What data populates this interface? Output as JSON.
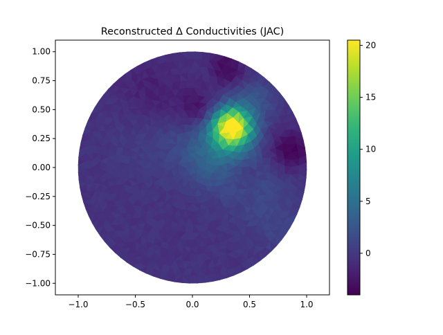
{
  "chart_data": {
    "type": "heatmap",
    "title": "Reconstructed Δ Conductivities (JAC)",
    "xlabel": "",
    "ylabel": "",
    "xlim": [
      -1.2,
      1.2
    ],
    "ylim": [
      -1.1,
      1.1
    ],
    "x_ticks": [
      -1.0,
      -0.5,
      0.0,
      0.5,
      1.0
    ],
    "x_tick_labels": [
      "−1.0",
      "−0.5",
      "0.0",
      "0.5",
      "1.0"
    ],
    "y_ticks": [
      1.0,
      0.75,
      0.5,
      0.25,
      0.0,
      -0.25,
      -0.5,
      -0.75,
      -1.0
    ],
    "y_tick_labels": [
      "1.00",
      "0.75",
      "0.50",
      "0.25",
      "0.00",
      "−0.25",
      "−0.50",
      "−0.75",
      "−1.00"
    ],
    "domain": "unit-disk",
    "colormap": "viridis",
    "colorbar": {
      "range": [
        -4,
        20.5
      ],
      "ticks": [
        0,
        5,
        10,
        15,
        20
      ],
      "tick_labels": [
        "0",
        "5",
        "10",
        "15",
        "20"
      ]
    },
    "background_value": -0.5,
    "features": [
      {
        "x": 0.35,
        "y": 0.35,
        "amplitude": 21.0,
        "spread": 0.12
      },
      {
        "x": 0.2,
        "y": 0.15,
        "amplitude": 5.0,
        "spread": 0.22
      },
      {
        "x": 0.05,
        "y": 0.5,
        "amplitude": -3.0,
        "spread": 0.12
      },
      {
        "x": 0.85,
        "y": 0.15,
        "amplitude": -3.5,
        "spread": 0.12
      },
      {
        "x": 0.3,
        "y": 0.85,
        "amplitude": -3.0,
        "spread": 0.1
      },
      {
        "x": 0.55,
        "y": 0.6,
        "amplitude": 2.5,
        "spread": 0.12
      },
      {
        "x": 0.6,
        "y": -0.2,
        "amplitude": 1.5,
        "spread": 0.22
      },
      {
        "x": 0.75,
        "y": -0.55,
        "amplitude": 1.0,
        "spread": 0.18
      },
      {
        "x": -0.35,
        "y": 0.65,
        "amplitude": -1.5,
        "spread": 0.2
      },
      {
        "x": 0.45,
        "y": -0.05,
        "amplitude": -1.5,
        "spread": 0.1
      },
      {
        "x": -0.4,
        "y": 0.2,
        "amplitude": 0.8,
        "spread": 0.25
      }
    ]
  }
}
